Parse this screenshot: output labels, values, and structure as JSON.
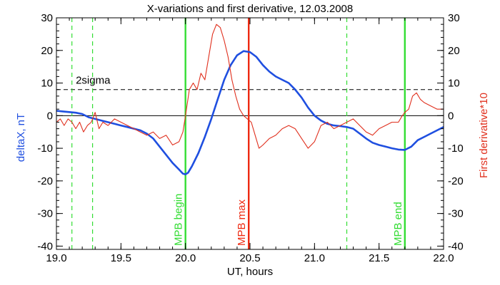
{
  "chart_data": {
    "type": "line",
    "title": "X-variations and first derivative, 12.03.2008",
    "xlabel": "UT, hours",
    "ylabel_left": "deltaX, nT",
    "ylabel_right": "First derivative*10",
    "xlim": [
      19.0,
      22.0
    ],
    "ylim": [
      -41,
      30
    ],
    "x_ticks": [
      19.0,
      19.5,
      20.0,
      20.5,
      21.0,
      21.5,
      22.0
    ],
    "x_tick_labels": [
      "19.0",
      "19.5",
      "20.0",
      "20.5",
      "21.0",
      "21.5",
      "22.0"
    ],
    "y_ticks": [
      30,
      20,
      10,
      0,
      -10,
      -20,
      -30,
      -40
    ],
    "y_tick_labels": [
      "30",
      "20",
      "10",
      "0",
      "-10",
      "-20",
      "-30",
      "-40"
    ],
    "grid": false,
    "colors": {
      "deltaX": "#1f4fe0",
      "derivative": "#e0301e",
      "mpb_boundary": "#33dd33",
      "mpb_max": "#ee2a12",
      "axes": "#000000"
    },
    "series": [
      {
        "key": "deltaX",
        "axis": "left",
        "x": [
          19.0,
          19.05,
          19.1,
          19.15,
          19.2,
          19.25,
          19.3,
          19.35,
          19.4,
          19.45,
          19.5,
          19.55,
          19.6,
          19.65,
          19.7,
          19.75,
          19.8,
          19.85,
          19.9,
          19.95,
          19.98,
          20.0,
          20.02,
          20.05,
          20.1,
          20.15,
          20.2,
          20.25,
          20.3,
          20.35,
          20.4,
          20.45,
          20.5,
          20.55,
          20.6,
          20.65,
          20.7,
          20.75,
          20.8,
          20.85,
          20.9,
          20.95,
          21.0,
          21.05,
          21.1,
          21.15,
          21.2,
          21.25,
          21.3,
          21.35,
          21.4,
          21.45,
          21.5,
          21.55,
          21.6,
          21.65,
          21.7,
          21.75,
          21.8,
          21.85,
          21.9,
          21.95,
          22.0
        ],
        "y": [
          1.5,
          1.3,
          1.1,
          0.9,
          0.5,
          -0.5,
          -1.0,
          -1.5,
          -2.0,
          -2.5,
          -3.0,
          -3.5,
          -4.0,
          -4.5,
          -5.5,
          -7.0,
          -9.5,
          -12.0,
          -14.5,
          -16.5,
          -17.8,
          -18.0,
          -17.5,
          -15.5,
          -11.5,
          -6.5,
          -1.0,
          5.0,
          11.0,
          15.5,
          18.5,
          19.8,
          19.5,
          18.0,
          15.5,
          13.5,
          12.0,
          11.0,
          10.0,
          8.0,
          5.5,
          2.5,
          0.0,
          -1.5,
          -2.5,
          -3.0,
          -3.2,
          -3.5,
          -4.0,
          -5.5,
          -7.0,
          -8.3,
          -9.0,
          -9.5,
          -10.0,
          -10.4,
          -10.5,
          -9.5,
          -7.5,
          -6.5,
          -5.5,
          -4.5,
          -3.5
        ]
      },
      {
        "key": "derivative",
        "axis": "right",
        "x": [
          19.0,
          19.03,
          19.06,
          19.09,
          19.12,
          19.15,
          19.18,
          19.21,
          19.24,
          19.27,
          19.3,
          19.33,
          19.36,
          19.4,
          19.45,
          19.5,
          19.55,
          19.6,
          19.65,
          19.7,
          19.75,
          19.8,
          19.85,
          19.9,
          19.95,
          19.98,
          20.0,
          20.03,
          20.06,
          20.09,
          20.12,
          20.15,
          20.18,
          20.21,
          20.24,
          20.27,
          20.3,
          20.33,
          20.36,
          20.39,
          20.42,
          20.45,
          20.48,
          20.51,
          20.54,
          20.57,
          20.6,
          20.65,
          20.7,
          20.75,
          20.8,
          20.85,
          20.9,
          20.95,
          21.0,
          21.05,
          21.1,
          21.15,
          21.2,
          21.25,
          21.3,
          21.35,
          21.4,
          21.45,
          21.5,
          21.55,
          21.6,
          21.65,
          21.68,
          21.7,
          21.73,
          21.76,
          21.79,
          21.82,
          21.85,
          21.9,
          21.95,
          22.0
        ],
        "y": [
          -2,
          -1,
          -3,
          -1,
          -2,
          -4,
          -2,
          -5,
          -3,
          -2,
          1,
          -4,
          -2,
          -3,
          -1,
          -2,
          -3,
          -4,
          -5,
          -6,
          -5,
          -7,
          -6,
          -9,
          -8,
          -5,
          0,
          8,
          10,
          8,
          13,
          11,
          18,
          25,
          28,
          27,
          23,
          18,
          11,
          6,
          2,
          0,
          -1,
          -2,
          -6,
          -10,
          -9,
          -7,
          -6,
          -4,
          -3,
          -4,
          -7,
          -10,
          -8,
          -3,
          -2,
          -4,
          -3,
          -2,
          -1,
          -3,
          -5,
          -6,
          -4,
          -3,
          -2,
          -2,
          0,
          1,
          2,
          6,
          7,
          5,
          4,
          3,
          2,
          2
        ]
      }
    ],
    "reference_lines": [
      {
        "type": "horizontal",
        "y": 8.0,
        "style": "dashed",
        "label": "2sigma"
      },
      {
        "type": "horizontal",
        "y": 0.0,
        "style": "solid"
      }
    ],
    "vertical_lines": [
      {
        "x": 19.12,
        "style": "dashed",
        "color_key": "mpb_boundary",
        "label": ""
      },
      {
        "x": 19.28,
        "style": "dashed",
        "color_key": "mpb_boundary",
        "label": ""
      },
      {
        "x": 20.0,
        "style": "solid",
        "color_key": "mpb_boundary",
        "label": "MPB begin"
      },
      {
        "x": 20.49,
        "style": "solid",
        "color_key": "mpb_max",
        "label": "MPB max"
      },
      {
        "x": 21.25,
        "style": "dashed",
        "color_key": "mpb_boundary",
        "label": ""
      },
      {
        "x": 21.7,
        "style": "solid",
        "color_key": "mpb_boundary",
        "label": "MPB end"
      }
    ]
  }
}
